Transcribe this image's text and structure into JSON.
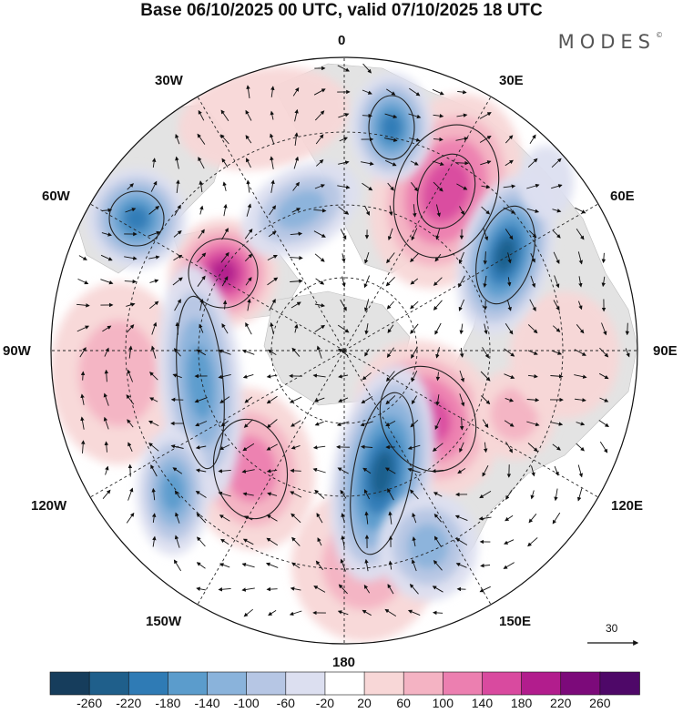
{
  "title": "Base 06/10/2025 00 UTC, valid 07/10/2025 18 UTC",
  "brand": "MODES",
  "brand_mark": "©",
  "meridian_labels": {
    "m0": "0",
    "m30e": "30E",
    "m60e": "60E",
    "m90e": "90E",
    "m120e": "120E",
    "m150e": "150E",
    "m180": "180",
    "m150w": "150W",
    "m120w": "120W",
    "m90w": "90W",
    "m60w": "60W",
    "m30w": "30W"
  },
  "reference_vector": {
    "label": "30"
  },
  "colorbar": {
    "ticks": [
      "-260",
      "-220",
      "-180",
      "-140",
      "-100",
      "-60",
      "-20",
      "20",
      "60",
      "100",
      "140",
      "180",
      "220",
      "260"
    ],
    "colors": [
      "#163d5c",
      "#1f5f8b",
      "#2f7bb5",
      "#5b9ccc",
      "#8ab3db",
      "#b6c6e4",
      "#dcdff0",
      "#ffffff",
      "#f8d7d7",
      "#f4b3c3",
      "#ec7fb0",
      "#d94a9f",
      "#b21d8d",
      "#7c0a7a",
      "#4e0868"
    ]
  },
  "colors": {
    "land": "#e3e3e3",
    "outline": "#222222",
    "grid": "#222222"
  }
}
